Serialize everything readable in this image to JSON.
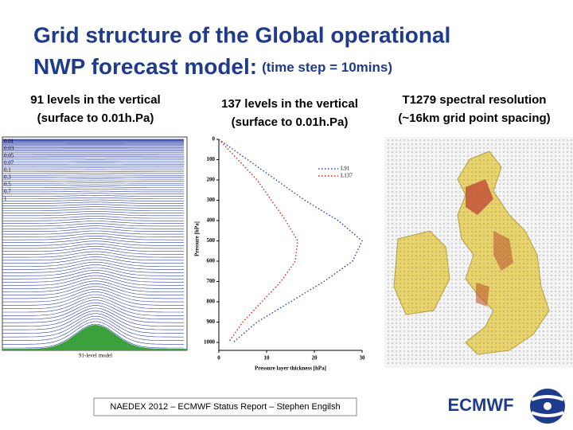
{
  "header": {
    "title_line1": "Grid structure of the Global operational",
    "title_line2": "NWP forecast model:",
    "title_note": "(time step = 10mins)"
  },
  "panels": {
    "left": {
      "label_line1": "91 levels in the vertical",
      "label_line2": "(surface  to 0.01h.Pa)",
      "caption": "91-level model",
      "yticks": [
        "0.01",
        "0.03",
        "0.05",
        "0.07",
        "0.1",
        "0.3",
        "0.5",
        "0.7",
        "1"
      ]
    },
    "middle": {
      "label_line1": "137 levels in the vertical",
      "label_line2": "(surface  to 0.01h.Pa)"
    },
    "right": {
      "label_line1": "T1279 spectral resolution",
      "label_line2": "(~16km grid point spacing)"
    }
  },
  "chart_data": {
    "type": "line",
    "xlabel": "Pressure layer thickness [hPa]",
    "ylabel": "Pressure [hPa]",
    "x": [
      0,
      100,
      200,
      300,
      400,
      500,
      600,
      700,
      800,
      900,
      1000
    ],
    "series": [
      {
        "name": "L91",
        "color": "#2b3fb8",
        "values": [
          0,
          6,
          12,
          18,
          25,
          30,
          28,
          22,
          15,
          8,
          3
        ]
      },
      {
        "name": "L137",
        "color": "#e02020",
        "values": [
          0,
          4,
          8,
          11,
          14,
          16.5,
          16,
          13,
          9,
          5,
          2
        ]
      }
    ],
    "xlim": [
      0,
      1000
    ],
    "xticks": [
      0,
      100,
      200,
      300,
      400,
      500,
      600,
      700,
      800,
      900,
      1000
    ],
    "ylim": [
      0,
      30
    ],
    "yticks": [
      0,
      10,
      20,
      30
    ]
  },
  "footer": {
    "text": "NAEDEX 2012 – ECMWF Status Report – Stephen Engilsh",
    "logo": "ECMWF"
  }
}
